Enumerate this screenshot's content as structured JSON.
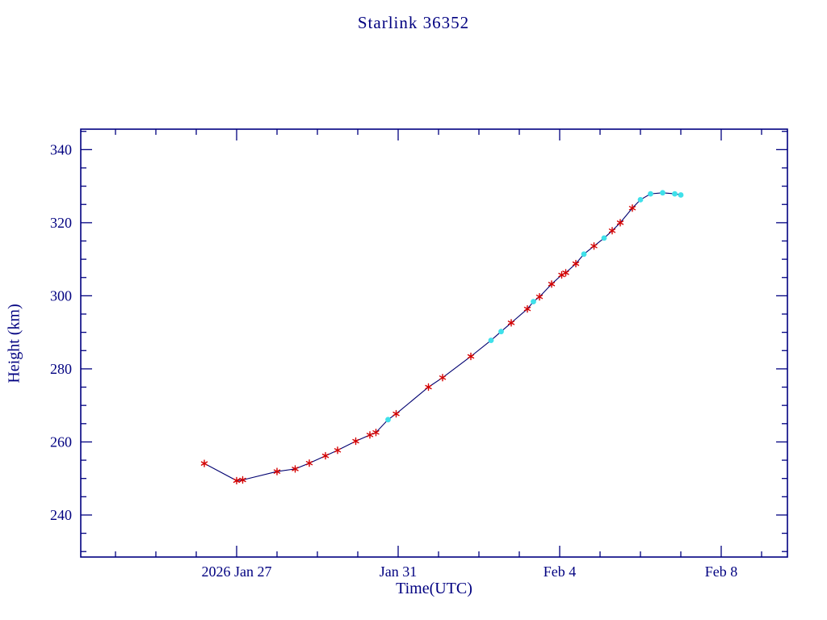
{
  "title": "Starlink 36352",
  "colors": {
    "background": "#ffffff",
    "axis": "#000080",
    "line": "#000070",
    "star_marker": "#d40000",
    "dot_marker": "#3fe0ea"
  },
  "chart_data": {
    "type": "line",
    "title": "Starlink 36352",
    "xlabel": "Time(UTC)",
    "ylabel": "Height (km)",
    "x_unit": "days since 2026 Jan 26 00:00 UTC",
    "xlim": [
      -2.86,
      14.64
    ],
    "ylim": [
      228.5,
      345.6
    ],
    "grid": false,
    "legend": null,
    "x_ticks": [
      {
        "t": 1,
        "label": "2026 Jan 27"
      },
      {
        "t": 5,
        "label": "Jan 31"
      },
      {
        "t": 9,
        "label": "Feb 4"
      },
      {
        "t": 13,
        "label": "Feb 8"
      }
    ],
    "x_minor_step_days": 1,
    "y_ticks": [
      240,
      260,
      280,
      300,
      320,
      340
    ],
    "y_minor_step": 5,
    "marker_legend": {
      "star": "red asterisk observation point",
      "dot": "cyan filled circle observation point"
    },
    "series": [
      {
        "name": "Height (km)",
        "points": [
          [
            0.2,
            254.1,
            "star"
          ],
          [
            1.0,
            249.4,
            "star"
          ],
          [
            1.15,
            249.6,
            "star"
          ],
          [
            2.0,
            251.9,
            "star"
          ],
          [
            2.45,
            252.6,
            "star"
          ],
          [
            2.8,
            254.2,
            "star"
          ],
          [
            3.2,
            256.2,
            "star"
          ],
          [
            3.5,
            257.7,
            "star"
          ],
          [
            3.95,
            260.2,
            "star"
          ],
          [
            4.3,
            261.9,
            "star"
          ],
          [
            4.45,
            262.6,
            "star"
          ],
          [
            4.75,
            266.1,
            "dot"
          ],
          [
            4.95,
            267.7,
            "star"
          ],
          [
            5.75,
            275.0,
            "star"
          ],
          [
            6.1,
            277.6,
            "star"
          ],
          [
            6.8,
            283.4,
            "star"
          ],
          [
            7.3,
            287.8,
            "dot"
          ],
          [
            7.55,
            290.2,
            "dot"
          ],
          [
            7.8,
            292.6,
            "star"
          ],
          [
            8.2,
            296.4,
            "star"
          ],
          [
            8.35,
            298.4,
            "dot"
          ],
          [
            8.5,
            299.7,
            "star"
          ],
          [
            8.8,
            303.2,
            "star"
          ],
          [
            9.05,
            305.7,
            "star"
          ],
          [
            9.15,
            306.3,
            "star"
          ],
          [
            9.4,
            308.8,
            "star"
          ],
          [
            9.6,
            311.4,
            "dot"
          ],
          [
            9.85,
            313.6,
            "star"
          ],
          [
            10.1,
            315.8,
            "dot"
          ],
          [
            10.3,
            317.8,
            "star"
          ],
          [
            10.5,
            320.0,
            "star"
          ],
          [
            10.8,
            324.0,
            "star"
          ],
          [
            11.0,
            326.3,
            "dot"
          ],
          [
            11.25,
            327.9,
            "dot"
          ],
          [
            11.55,
            328.2,
            "dot"
          ],
          [
            11.85,
            327.9,
            "dot"
          ],
          [
            12.0,
            327.6,
            "dot"
          ]
        ]
      }
    ]
  }
}
